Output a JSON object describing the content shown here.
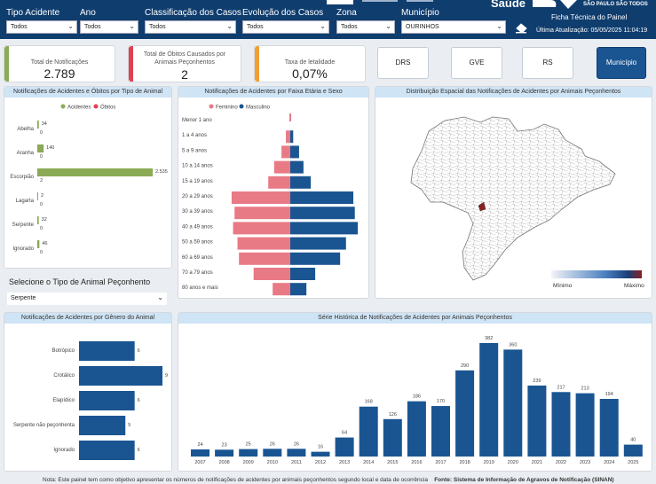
{
  "filters": [
    {
      "label": "Tipo Acidente",
      "value": "Todos"
    },
    {
      "label": "Ano",
      "value": "Todos"
    },
    {
      "label": "Classificação dos Casos",
      "value": "Todos"
    },
    {
      "label": "Evolução dos Casos",
      "value": "Todos"
    },
    {
      "label": "Zona",
      "value": "Todos"
    },
    {
      "label": "Município",
      "value": "OURINHOS"
    }
  ],
  "header": {
    "brand": "Saúde",
    "tagline": "SÃO PAULO SÃO TODOS",
    "ficha": "Ficha Técnica do Painel",
    "updated": "Última Atualização: 05/05/2025 11:04:19"
  },
  "kpis": [
    {
      "title": "Total de Notificações",
      "value": "2.789",
      "color": "#8aaa55"
    },
    {
      "title": "Total de Óbitos Causados por Animais Peçonhentos",
      "value": "2",
      "color": "#e04050"
    },
    {
      "title": "Taxa de letalidade",
      "value": "0,07%",
      "color": "#f0a030"
    }
  ],
  "level_buttons": [
    "DRS",
    "GVE",
    "RS",
    "Município"
  ],
  "colors": {
    "green": "#8aaa55",
    "red": "#e04050",
    "blue": "#1a5592",
    "pink": "#e87a85"
  },
  "selector": {
    "label": "Selecione o Tipo de Animal Peçonhento",
    "value": "Serpente"
  },
  "map": {
    "title": "Distribuição Espacial das Notificações de Acidentes por Animais Peçonhentos",
    "min_label": "Mínimo",
    "max_label": "Máximo"
  },
  "footer": {
    "note": "Nota: Este painel tem como objetivo apresentar os números de notificações de acidentes por animais peçonhentos segundo local e data de ocorrência",
    "source": "Fonte: Sistema de Informação de Agravos de Notificação (SINAN)"
  },
  "chart_data": [
    {
      "type": "bar",
      "title": "Notificações de Acidentes e Óbitos por Tipo de Animal",
      "categories": [
        "Abelha",
        "Aranha",
        "Escorpião",
        "Lagarta",
        "Serpente",
        "Ignorado"
      ],
      "series": [
        {
          "name": "Acidentes",
          "values": [
            34,
            140,
            2535,
            2,
            32,
            46
          ]
        },
        {
          "name": "Óbitos",
          "values": [
            0,
            0,
            2,
            0,
            0,
            0
          ]
        }
      ],
      "value_labels": {
        "Acidentes": [
          "34",
          "140",
          "2.535",
          "2",
          "32",
          "46"
        ],
        "Óbitos": [
          "0",
          "0",
          "2",
          "0",
          "0",
          "0"
        ]
      },
      "orientation": "horizontal",
      "legend": "top"
    },
    {
      "type": "bar",
      "title": "Notificações de Acidentes por Faixa Etária e Sexo",
      "categories": [
        "Menor 1 ano",
        "1 a 4 anos",
        "5 a 9 anos",
        "10 a 14 anos",
        "15 a 19 anos",
        "20 a 29 anos",
        "30 a 39 anos",
        "40 a 49 anos",
        "50 a 59 anos",
        "60 a 69 anos",
        "70 a 79 anos",
        "80 anos e mais"
      ],
      "series": [
        {
          "name": "Feminino",
          "values": [
            0,
            15,
            30,
            55,
            75,
            200,
            190,
            195,
            180,
            175,
            125,
            60
          ]
        },
        {
          "name": "Masculino",
          "values": [
            0,
            10,
            30,
            45,
            70,
            215,
            220,
            230,
            190,
            170,
            85,
            55
          ]
        }
      ],
      "orientation": "horizontal",
      "layout": "population-pyramid",
      "legend": "top"
    },
    {
      "type": "bar",
      "title": "Notificações de Acidentes por Gênero do Animal",
      "categories": [
        "Botrópico",
        "Crotálico",
        "Elapídico",
        "Serpente não peçonhenta",
        "Ignorado"
      ],
      "values": [
        6,
        9,
        6,
        5,
        6
      ],
      "orientation": "horizontal"
    },
    {
      "type": "bar",
      "title": "Série Histórica de Notificações de Acidentes por Animais Peçonhentos",
      "categories": [
        "2007",
        "2008",
        "2009",
        "2010",
        "2011",
        "2012",
        "2013",
        "2014",
        "2015",
        "2016",
        "2017",
        "2018",
        "2019",
        "2020",
        "2021",
        "2022",
        "2023",
        "2024",
        "2025"
      ],
      "values": [
        24,
        23,
        25,
        26,
        26,
        16,
        64,
        168,
        126,
        186,
        170,
        290,
        382,
        360,
        239,
        217,
        213,
        194,
        40
      ],
      "ylim": [
        0,
        382
      ]
    }
  ]
}
